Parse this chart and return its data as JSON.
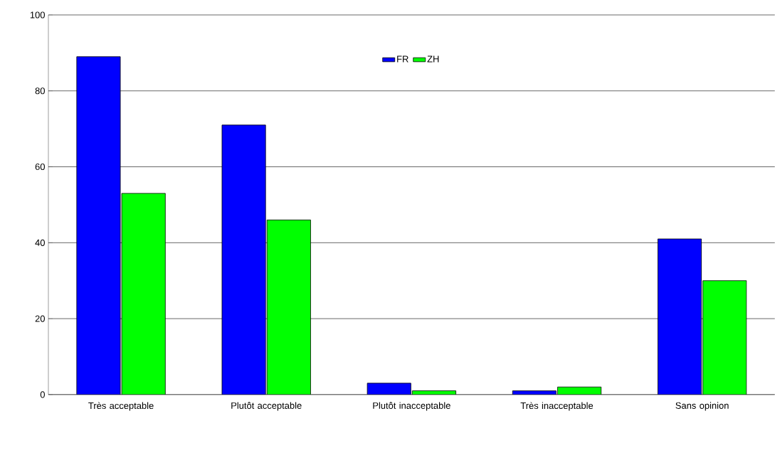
{
  "chart_data": {
    "type": "bar",
    "categories": [
      "Très acceptable",
      "Plutôt acceptable",
      "Plutôt inacceptable",
      "Très inacceptable",
      "Sans opinion"
    ],
    "series": [
      {
        "name": "FR",
        "color": "#0000ff",
        "values": [
          89,
          71,
          3,
          1,
          41
        ]
      },
      {
        "name": "ZH",
        "color": "#00ff00",
        "values": [
          53,
          46,
          1,
          2,
          30
        ]
      }
    ],
    "ylim": [
      0,
      100
    ],
    "yticks": [
      0,
      20,
      40,
      60,
      80,
      100
    ],
    "grid": "y",
    "legend": "top"
  }
}
